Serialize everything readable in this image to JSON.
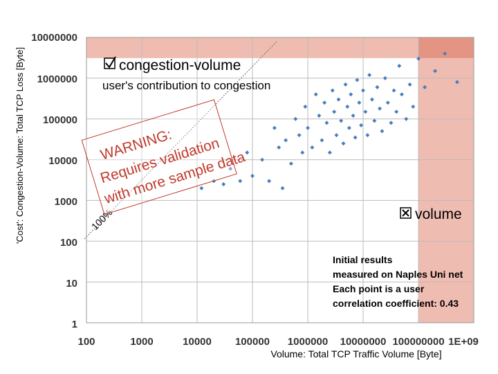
{
  "chart_data": {
    "type": "scatter",
    "xlabel": "Volume: Total TCP Traffic Volume [Byte]",
    "ylabel": "'Cost': Congestion-Volume: Total TCP Loss [Byte]",
    "xscale": "log",
    "yscale": "log",
    "xlim": [
      100,
      1000000000
    ],
    "ylim": [
      1,
      10000000
    ],
    "x_ticks": [
      "100",
      "1000",
      "10000",
      "100000",
      "1000000",
      "10000000",
      "100000000",
      "1E+09"
    ],
    "y_ticks": [
      "10000000",
      "1000000",
      "100000",
      "10000",
      "1000",
      "100",
      "10",
      "1"
    ],
    "grid": true,
    "marker_color": "#4a7ebb",
    "shaded_regions_color": "#e8a090",
    "annotations": {
      "congestion_title": "congestion-volume",
      "congestion_sub": "user's contribution to congestion",
      "warning_lines": [
        "WARNING:",
        "Requires validation",
        "with more sample data"
      ],
      "reference_line_label": "100%",
      "volume_label": "volume",
      "notes": [
        "Initial results",
        "measured on Naples Uni net",
        "Each point is a user",
        "correlation coefficient: 0.43"
      ]
    },
    "correlation_coefficient": 0.43,
    "points": [
      [
        12000,
        2000
      ],
      [
        20000,
        3000
      ],
      [
        30000,
        2500
      ],
      [
        40000,
        6000
      ],
      [
        60000,
        3000
      ],
      [
        80000,
        15000
      ],
      [
        100000,
        4000
      ],
      [
        150000,
        10000
      ],
      [
        200000,
        3000
      ],
      [
        250000,
        60000
      ],
      [
        300000,
        20000
      ],
      [
        350000,
        2000
      ],
      [
        400000,
        30000
      ],
      [
        500000,
        8000
      ],
      [
        600000,
        100000
      ],
      [
        700000,
        40000
      ],
      [
        800000,
        15000
      ],
      [
        900000,
        200000
      ],
      [
        1000000,
        60000
      ],
      [
        1200000,
        20000
      ],
      [
        1400000,
        400000
      ],
      [
        1600000,
        120000
      ],
      [
        1800000,
        30000
      ],
      [
        2000000,
        250000
      ],
      [
        2200000,
        80000
      ],
      [
        2500000,
        15000
      ],
      [
        2800000,
        500000
      ],
      [
        3000000,
        150000
      ],
      [
        3300000,
        40000
      ],
      [
        3600000,
        300000
      ],
      [
        4000000,
        90000
      ],
      [
        4400000,
        25000
      ],
      [
        4800000,
        700000
      ],
      [
        5200000,
        200000
      ],
      [
        5600000,
        60000
      ],
      [
        6000000,
        400000
      ],
      [
        6600000,
        120000
      ],
      [
        7200000,
        35000
      ],
      [
        7800000,
        900000
      ],
      [
        8500000,
        250000
      ],
      [
        9200000,
        70000
      ],
      [
        10000000,
        500000
      ],
      [
        11000000,
        150000
      ],
      [
        12000000,
        40000
      ],
      [
        13000000,
        1200000
      ],
      [
        14500000,
        300000
      ],
      [
        16000000,
        90000
      ],
      [
        18000000,
        600000
      ],
      [
        20000000,
        180000
      ],
      [
        22000000,
        50000
      ],
      [
        25000000,
        1000000
      ],
      [
        28000000,
        250000
      ],
      [
        32000000,
        80000
      ],
      [
        36000000,
        500000
      ],
      [
        40000000,
        150000
      ],
      [
        45000000,
        2000000
      ],
      [
        50000000,
        400000
      ],
      [
        60000000,
        100000
      ],
      [
        70000000,
        700000
      ],
      [
        80000000,
        200000
      ],
      [
        100000000,
        3000000
      ],
      [
        130000000,
        600000
      ],
      [
        200000000,
        1500000
      ],
      [
        300000000,
        4000000
      ],
      [
        500000000,
        800000
      ]
    ]
  }
}
